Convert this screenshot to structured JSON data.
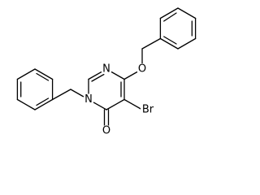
{
  "labels": [
    "N",
    "N",
    "O",
    "O",
    "Br"
  ]
}
